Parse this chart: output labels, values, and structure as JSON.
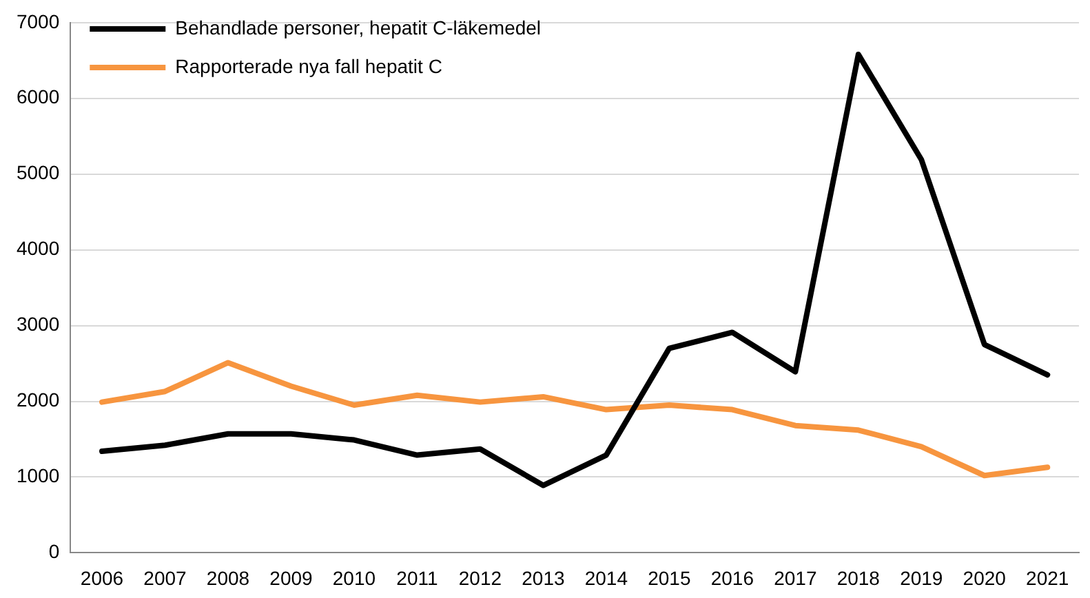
{
  "chart_data": {
    "type": "line",
    "categories": [
      "2006",
      "2007",
      "2008",
      "2009",
      "2010",
      "2011",
      "2012",
      "2013",
      "2014",
      "2015",
      "2016",
      "2017",
      "2018",
      "2019",
      "2020",
      "2021"
    ],
    "series": [
      {
        "name": "Behandlade personer, hepatit C-läkemedel",
        "color": "#000000",
        "values": [
          1340,
          1420,
          1570,
          1570,
          1490,
          1290,
          1370,
          890,
          1290,
          2700,
          2910,
          2390,
          6580,
          5190,
          2750,
          2350
        ]
      },
      {
        "name": "Rapporterade nya fall hepatit C",
        "color": "#f7953f",
        "values": [
          1990,
          2130,
          2510,
          2200,
          1950,
          2080,
          1990,
          2060,
          1890,
          1950,
          1890,
          1680,
          1620,
          1400,
          1020,
          1130
        ]
      }
    ],
    "ylim": [
      0,
      7000
    ],
    "yticks": [
      0,
      1000,
      2000,
      3000,
      4000,
      5000,
      6000,
      7000
    ],
    "grid": "y",
    "legend": "top left",
    "marker": "none",
    "line_style": "solid"
  }
}
